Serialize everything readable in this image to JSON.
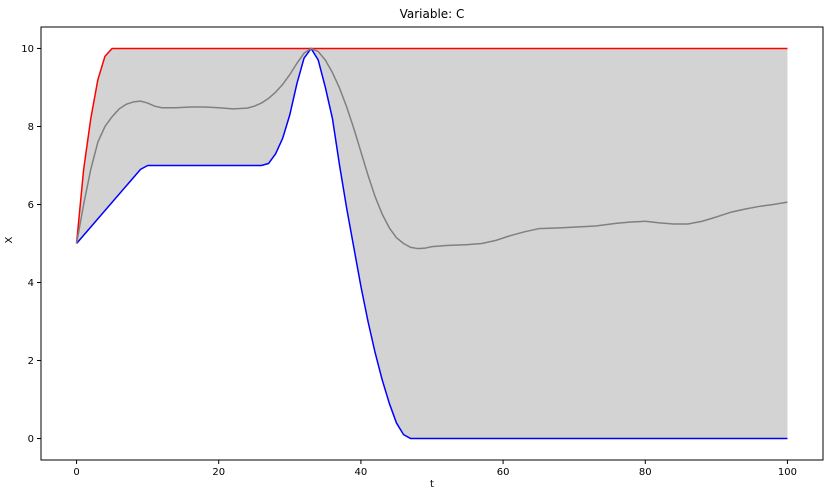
{
  "chart_data": {
    "type": "line",
    "title": "Variable: C",
    "xlabel": "t",
    "ylabel": "X",
    "xlim": [
      -5,
      105
    ],
    "ylim": [
      -0.55,
      10.55
    ],
    "xticks": [
      0,
      20,
      40,
      60,
      80,
      100
    ],
    "yticks": [
      0,
      2,
      4,
      6,
      8,
      10
    ],
    "grid": false,
    "band": {
      "fill_color": "#d3d3d3",
      "upper": [
        [
          0,
          5
        ],
        [
          1,
          6.9
        ],
        [
          2,
          8.2
        ],
        [
          3,
          9.2
        ],
        [
          4,
          9.8
        ],
        [
          5,
          10
        ],
        [
          100,
          10
        ]
      ],
      "lower": [
        [
          0,
          5
        ],
        [
          9,
          6.9
        ],
        [
          10,
          7
        ],
        [
          26,
          7
        ],
        [
          27,
          7.05
        ],
        [
          28,
          7.3
        ],
        [
          29,
          7.7
        ],
        [
          30,
          8.3
        ],
        [
          31,
          9.1
        ],
        [
          32,
          9.75
        ],
        [
          33,
          10
        ],
        [
          34,
          9.7
        ],
        [
          35,
          9.0
        ],
        [
          36,
          8.2
        ],
        [
          37,
          7.0
        ],
        [
          38,
          5.9
        ],
        [
          39,
          4.9
        ],
        [
          40,
          3.9
        ],
        [
          41,
          3.0
        ],
        [
          42,
          2.2
        ],
        [
          43,
          1.5
        ],
        [
          44,
          0.9
        ],
        [
          45,
          0.4
        ],
        [
          46,
          0.1
        ],
        [
          47,
          0
        ],
        [
          100,
          0
        ]
      ]
    },
    "series": [
      {
        "color": "#ff0000",
        "values": [
          [
            0,
            5
          ],
          [
            1,
            6.9
          ],
          [
            2,
            8.2
          ],
          [
            3,
            9.2
          ],
          [
            4,
            9.8
          ],
          [
            5,
            10
          ],
          [
            100,
            10
          ]
        ]
      },
      {
        "color": "#0000ff",
        "values": [
          [
            0,
            5
          ],
          [
            9,
            6.9
          ],
          [
            10,
            7
          ],
          [
            26,
            7
          ],
          [
            27,
            7.05
          ],
          [
            28,
            7.3
          ],
          [
            29,
            7.7
          ],
          [
            30,
            8.3
          ],
          [
            31,
            9.1
          ],
          [
            32,
            9.75
          ],
          [
            33,
            10
          ],
          [
            34,
            9.7
          ],
          [
            35,
            9.0
          ],
          [
            36,
            8.2
          ],
          [
            37,
            7.0
          ],
          [
            38,
            5.9
          ],
          [
            39,
            4.9
          ],
          [
            40,
            3.9
          ],
          [
            41,
            3.0
          ],
          [
            42,
            2.2
          ],
          [
            43,
            1.5
          ],
          [
            44,
            0.9
          ],
          [
            45,
            0.4
          ],
          [
            46,
            0.1
          ],
          [
            47,
            0
          ],
          [
            100,
            0
          ]
        ]
      },
      {
        "color": "#808080",
        "values": [
          [
            0,
            5
          ],
          [
            1,
            6.0
          ],
          [
            2,
            6.9
          ],
          [
            3,
            7.6
          ],
          [
            4,
            8.0
          ],
          [
            5,
            8.25
          ],
          [
            6,
            8.45
          ],
          [
            7,
            8.57
          ],
          [
            8,
            8.63
          ],
          [
            9,
            8.65
          ],
          [
            10,
            8.6
          ],
          [
            11,
            8.52
          ],
          [
            12,
            8.48
          ],
          [
            14,
            8.48
          ],
          [
            16,
            8.5
          ],
          [
            18,
            8.5
          ],
          [
            20,
            8.48
          ],
          [
            22,
            8.45
          ],
          [
            24,
            8.47
          ],
          [
            25,
            8.52
          ],
          [
            26,
            8.6
          ],
          [
            27,
            8.72
          ],
          [
            28,
            8.88
          ],
          [
            29,
            9.08
          ],
          [
            30,
            9.33
          ],
          [
            31,
            9.62
          ],
          [
            32,
            9.88
          ],
          [
            33,
            10
          ],
          [
            34,
            9.92
          ],
          [
            35,
            9.7
          ],
          [
            36,
            9.38
          ],
          [
            37,
            8.98
          ],
          [
            38,
            8.5
          ],
          [
            39,
            7.95
          ],
          [
            40,
            7.35
          ],
          [
            41,
            6.75
          ],
          [
            42,
            6.2
          ],
          [
            43,
            5.75
          ],
          [
            44,
            5.4
          ],
          [
            45,
            5.15
          ],
          [
            46,
            5.0
          ],
          [
            47,
            4.9
          ],
          [
            48,
            4.87
          ],
          [
            49,
            4.88
          ],
          [
            50,
            4.92
          ],
          [
            52,
            4.95
          ],
          [
            55,
            4.97
          ],
          [
            57,
            5.0
          ],
          [
            59,
            5.08
          ],
          [
            61,
            5.2
          ],
          [
            63,
            5.3
          ],
          [
            65,
            5.38
          ],
          [
            68,
            5.4
          ],
          [
            70,
            5.42
          ],
          [
            73,
            5.45
          ],
          [
            76,
            5.52
          ],
          [
            78,
            5.55
          ],
          [
            80,
            5.57
          ],
          [
            82,
            5.53
          ],
          [
            84,
            5.5
          ],
          [
            86,
            5.5
          ],
          [
            88,
            5.57
          ],
          [
            90,
            5.68
          ],
          [
            92,
            5.8
          ],
          [
            94,
            5.88
          ],
          [
            96,
            5.95
          ],
          [
            98,
            6.0
          ],
          [
            100,
            6.06
          ]
        ]
      }
    ]
  }
}
